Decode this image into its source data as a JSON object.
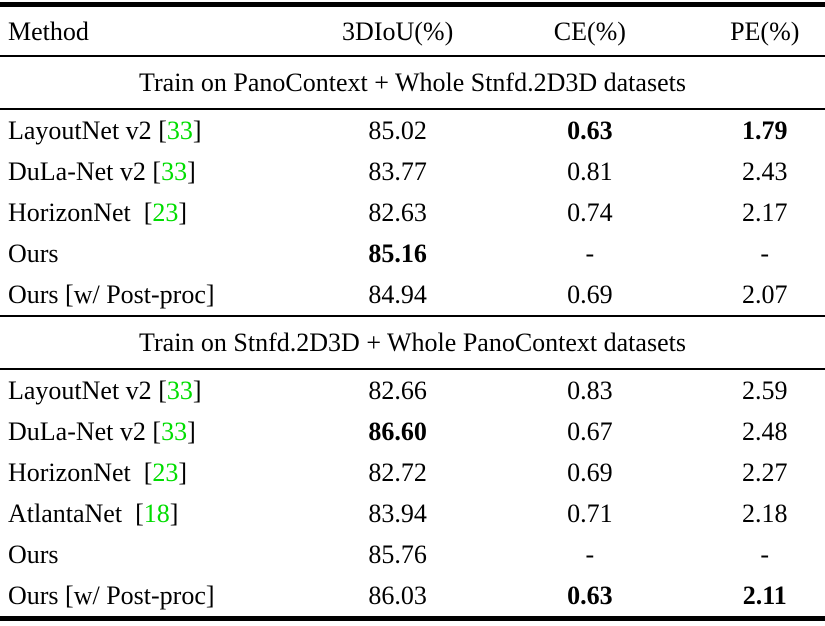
{
  "colors": {
    "text": "#000000",
    "background": "#ffffff",
    "citation_green": "#00dd00",
    "rule": "#000000"
  },
  "table": {
    "columns": [
      "Method",
      "3DIoU(%)",
      "CE(%)",
      "PE(%)"
    ]
  },
  "sections": [
    {
      "title": "Train on PanoContext + Whole Stnfd.2D3D datasets",
      "rows": [
        {
          "method": "LayoutNet v2",
          "cite_pre": " [",
          "cite": "33",
          "cite_post": "]",
          "iou": "85.02",
          "ce": "0.63",
          "pe": "1.79"
        },
        {
          "method": "DuLa-Net v2",
          "cite_pre": " [",
          "cite": "33",
          "cite_post": "]",
          "iou": "83.77",
          "ce": "0.81",
          "pe": "2.43"
        },
        {
          "method": "HorizonNet",
          "cite_pre": "  [",
          "cite": "23",
          "cite_post": "]",
          "iou": "82.63",
          "ce": "0.74",
          "pe": "2.17"
        },
        {
          "method": "Ours",
          "cite_pre": "",
          "cite": "",
          "cite_post": "",
          "iou": "85.16",
          "ce": "-",
          "pe": "-"
        },
        {
          "method": "Ours [w/ Post-proc]",
          "cite_pre": "",
          "cite": "",
          "cite_post": "",
          "iou": "84.94",
          "ce": "0.69",
          "pe": "2.07"
        }
      ]
    },
    {
      "title": "Train on Stnfd.2D3D + Whole PanoContext datasets",
      "rows": [
        {
          "method": "LayoutNet v2",
          "cite_pre": " [",
          "cite": "33",
          "cite_post": "]",
          "iou": "82.66",
          "ce": "0.83",
          "pe": "2.59"
        },
        {
          "method": "DuLa-Net v2",
          "cite_pre": " [",
          "cite": "33",
          "cite_post": "]",
          "iou": "86.60",
          "ce": "0.67",
          "pe": "2.48"
        },
        {
          "method": "HorizonNet",
          "cite_pre": "  [",
          "cite": "23",
          "cite_post": "]",
          "iou": "82.72",
          "ce": "0.69",
          "pe": "2.27"
        },
        {
          "method": "AtlantaNet",
          "cite_pre": "  [",
          "cite": "18",
          "cite_post": "]",
          "iou": "83.94",
          "ce": "0.71",
          "pe": "2.18"
        },
        {
          "method": "Ours",
          "cite_pre": "",
          "cite": "",
          "cite_post": "",
          "iou": "85.76",
          "ce": "-",
          "pe": "-"
        },
        {
          "method": "Ours [w/ Post-proc]",
          "cite_pre": "",
          "cite": "",
          "cite_post": "",
          "iou": "86.03",
          "ce": "0.63",
          "pe": "2.11"
        }
      ]
    }
  ]
}
